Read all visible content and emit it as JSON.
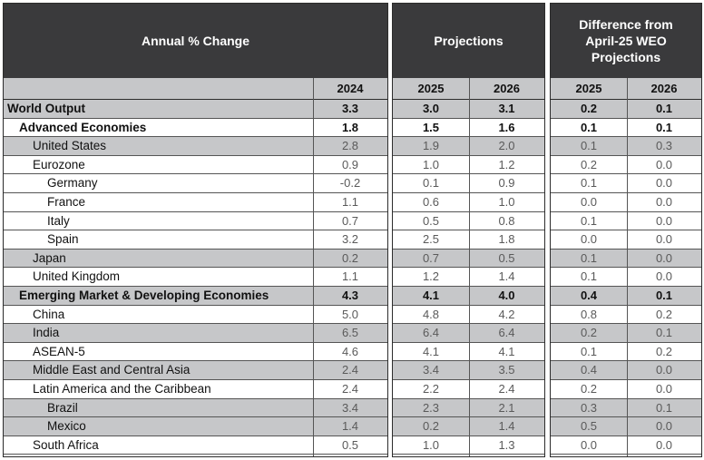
{
  "headers": {
    "panel1": "Annual % Change",
    "panel2": "Projections",
    "panel3": "Difference from\nApril-25 WEO\nProjections"
  },
  "years": {
    "actual": "2024",
    "proj_2025": "2025",
    "proj_2026": "2026",
    "diff_2025": "2025",
    "diff_2026": "2026"
  },
  "rows": [
    {
      "label": "World Output",
      "level": 0,
      "bold": true,
      "shaded": true,
      "v2024": "3.3",
      "p2025": "3.0",
      "p2026": "3.1",
      "d2025": "0.2",
      "d2026": "0.1"
    },
    {
      "label": "Advanced Economies",
      "level": 1,
      "bold": true,
      "shaded": false,
      "v2024": "1.8",
      "p2025": "1.5",
      "p2026": "1.6",
      "d2025": "0.1",
      "d2026": "0.1"
    },
    {
      "label": "United States",
      "level": 2,
      "bold": false,
      "shaded": true,
      "v2024": "2.8",
      "p2025": "1.9",
      "p2026": "2.0",
      "d2025": "0.1",
      "d2026": "0.3"
    },
    {
      "label": "Eurozone",
      "level": 2,
      "bold": false,
      "shaded": false,
      "v2024": "0.9",
      "p2025": "1.0",
      "p2026": "1.2",
      "d2025": "0.2",
      "d2026": "0.0"
    },
    {
      "label": "Germany",
      "level": 3,
      "bold": false,
      "shaded": false,
      "v2024": "-0.2",
      "p2025": "0.1",
      "p2026": "0.9",
      "d2025": "0.1",
      "d2026": "0.0"
    },
    {
      "label": "France",
      "level": 3,
      "bold": false,
      "shaded": false,
      "v2024": "1.1",
      "p2025": "0.6",
      "p2026": "1.0",
      "d2025": "0.0",
      "d2026": "0.0"
    },
    {
      "label": "Italy",
      "level": 3,
      "bold": false,
      "shaded": false,
      "v2024": "0.7",
      "p2025": "0.5",
      "p2026": "0.8",
      "d2025": "0.1",
      "d2026": "0.0"
    },
    {
      "label": "Spain",
      "level": 3,
      "bold": false,
      "shaded": false,
      "v2024": "3.2",
      "p2025": "2.5",
      "p2026": "1.8",
      "d2025": "0.0",
      "d2026": "0.0"
    },
    {
      "label": "Japan",
      "level": 2,
      "bold": false,
      "shaded": true,
      "v2024": "0.2",
      "p2025": "0.7",
      "p2026": "0.5",
      "d2025": "0.1",
      "d2026": "0.0"
    },
    {
      "label": "United Kingdom",
      "level": 2,
      "bold": false,
      "shaded": false,
      "v2024": "1.1",
      "p2025": "1.2",
      "p2026": "1.4",
      "d2025": "0.1",
      "d2026": "0.0"
    },
    {
      "label": "Emerging Market & Developing Economies",
      "level": 1,
      "bold": true,
      "shaded": true,
      "v2024": "4.3",
      "p2025": "4.1",
      "p2026": "4.0",
      "d2025": "0.4",
      "d2026": "0.1"
    },
    {
      "label": "China",
      "level": 2,
      "bold": false,
      "shaded": false,
      "v2024": "5.0",
      "p2025": "4.8",
      "p2026": "4.2",
      "d2025": "0.8",
      "d2026": "0.2"
    },
    {
      "label": "India",
      "level": 2,
      "bold": false,
      "shaded": true,
      "v2024": "6.5",
      "p2025": "6.4",
      "p2026": "6.4",
      "d2025": "0.2",
      "d2026": "0.1"
    },
    {
      "label": "ASEAN-5",
      "level": 2,
      "bold": false,
      "shaded": false,
      "v2024": "4.6",
      "p2025": "4.1",
      "p2026": "4.1",
      "d2025": "0.1",
      "d2026": "0.2"
    },
    {
      "label": "Middle East and Central Asia",
      "level": 2,
      "bold": false,
      "shaded": true,
      "v2024": "2.4",
      "p2025": "3.4",
      "p2026": "3.5",
      "d2025": "0.4",
      "d2026": "0.0"
    },
    {
      "label": "Latin America and the Caribbean",
      "level": 2,
      "bold": false,
      "shaded": false,
      "v2024": "2.4",
      "p2025": "2.2",
      "p2026": "2.4",
      "d2025": "0.2",
      "d2026": "0.0"
    },
    {
      "label": "Brazil",
      "level": 3,
      "bold": false,
      "shaded": true,
      "v2024": "3.4",
      "p2025": "2.3",
      "p2026": "2.1",
      "d2025": "0.3",
      "d2026": "0.1"
    },
    {
      "label": "Mexico",
      "level": 3,
      "bold": false,
      "shaded": true,
      "v2024": "1.4",
      "p2025": "0.2",
      "p2026": "1.4",
      "d2025": "0.5",
      "d2026": "0.0"
    },
    {
      "label": "South Africa",
      "level": 2,
      "bold": false,
      "shaded": false,
      "v2024": "0.5",
      "p2025": "1.0",
      "p2026": "1.3",
      "d2025": "0.0",
      "d2026": "0.0"
    }
  ]
}
